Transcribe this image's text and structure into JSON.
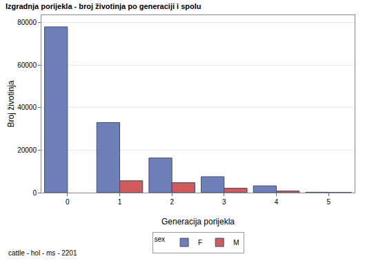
{
  "chart_data": {
    "type": "bar",
    "title": "Izgradnja porijekla - broj životinja po generaciji i spolu",
    "x_label": "Generacija porijekla",
    "y_label": "Broj životinja",
    "categories": [
      "0",
      "1",
      "2",
      "3",
      "4",
      "5"
    ],
    "series": [
      {
        "name": "F",
        "color": "#6f7fb8",
        "values": [
          78000,
          33000,
          16300,
          7500,
          3200,
          200
        ]
      },
      {
        "name": "M",
        "color": "#d05b5b",
        "values": [
          null,
          5600,
          4700,
          2100,
          800,
          100
        ]
      }
    ],
    "ylim": [
      0,
      83500
    ],
    "yticks": [
      0,
      20000,
      40000,
      60000,
      80000
    ],
    "grid": true,
    "legend": "bottom",
    "legend_title": "sex",
    "annotations": [
      "cattle - hol - ms - 2201"
    ]
  }
}
